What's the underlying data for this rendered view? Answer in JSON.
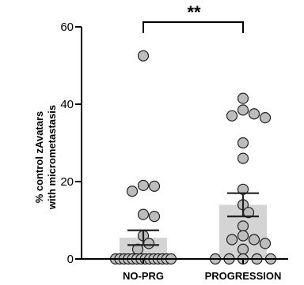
{
  "chart_data": {
    "type": "scatter",
    "categories": [
      "NO-PRG",
      "PROGRESSION"
    ],
    "ylabel_lines": [
      "% control zAvatars",
      "with micrometastasis"
    ],
    "ylim": [
      0,
      60
    ],
    "yticks": [
      0,
      20,
      40,
      60
    ],
    "significance": "**",
    "colors": {
      "bar": "#d4d4d4",
      "point_fill": "#bdbdbd",
      "point_stroke": "#222222",
      "axis": "#000000"
    },
    "groups": [
      {
        "category": "NO-PRG",
        "mean": 5.5,
        "sem_low": 3.6,
        "sem_high": 7.4,
        "points": [
          52.5,
          19,
          18.8,
          17.5,
          11.5,
          11,
          6,
          4,
          2.5,
          0,
          0,
          0,
          0,
          0,
          0,
          0,
          0,
          0,
          0,
          0,
          0,
          0,
          0
        ]
      },
      {
        "category": "PROGRESSION",
        "mean": 14,
        "sem_low": 11,
        "sem_high": 17,
        "points": [
          41.5,
          38.5,
          37.5,
          37,
          36.5,
          30,
          26,
          18,
          14,
          12,
          8.5,
          6,
          5,
          5,
          4,
          2.5,
          0,
          0,
          0,
          0,
          0
        ]
      }
    ]
  }
}
